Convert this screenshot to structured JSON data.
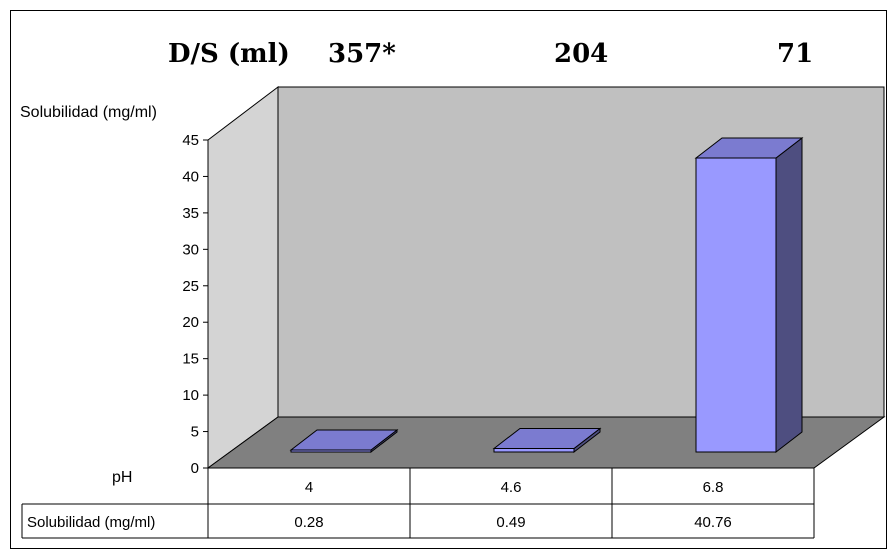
{
  "chart_data": {
    "type": "bar",
    "projection": "3d",
    "title": "",
    "top_header": {
      "label": "D/S (ml)",
      "values": [
        "357*",
        "204",
        "71"
      ]
    },
    "ylabel": "Solubilidad (mg/ml)",
    "ylim": [
      0,
      45
    ],
    "yticks": [
      0,
      5,
      10,
      15,
      20,
      25,
      30,
      35,
      40,
      45
    ],
    "xlabel": "pH",
    "categories": [
      "4",
      "4.6",
      "6.8"
    ],
    "series": [
      {
        "name": "Solubilidad (mg/ml)",
        "values": [
          0.28,
          0.49,
          40.76
        ],
        "value_labels": [
          "0.28",
          "0.49",
          "40.76"
        ]
      }
    ],
    "grid": false,
    "legend": "none",
    "colors": {
      "bar_front": "#9999ff",
      "bar_top": "#7b7bd0",
      "bar_side": "#4e4e80",
      "back_wall": "#c0c0c0",
      "side_wall": "#d4d4d4",
      "floor": "#808080"
    }
  }
}
